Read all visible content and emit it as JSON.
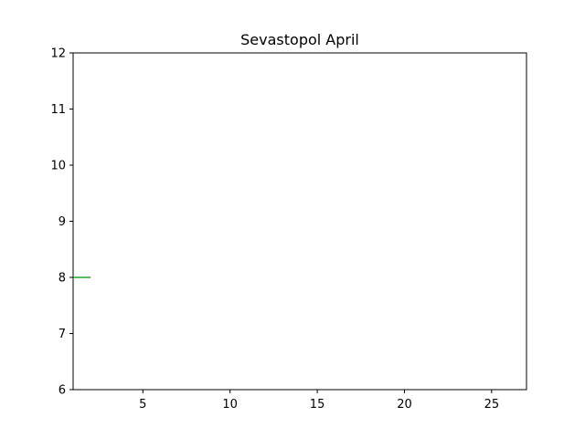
{
  "chart_data": {
    "type": "line",
    "title": "Sevastopol April",
    "xlabel": "",
    "ylabel": "",
    "xlim": [
      1,
      27
    ],
    "ylim": [
      6,
      12
    ],
    "x_ticks": [
      5,
      10,
      15,
      20,
      25
    ],
    "y_ticks": [
      6,
      7,
      8,
      9,
      10,
      11,
      12
    ],
    "grid": false,
    "series": [
      {
        "color": "#2ca02c",
        "x": [
          1,
          2
        ],
        "y": [
          8,
          8
        ]
      }
    ]
  }
}
